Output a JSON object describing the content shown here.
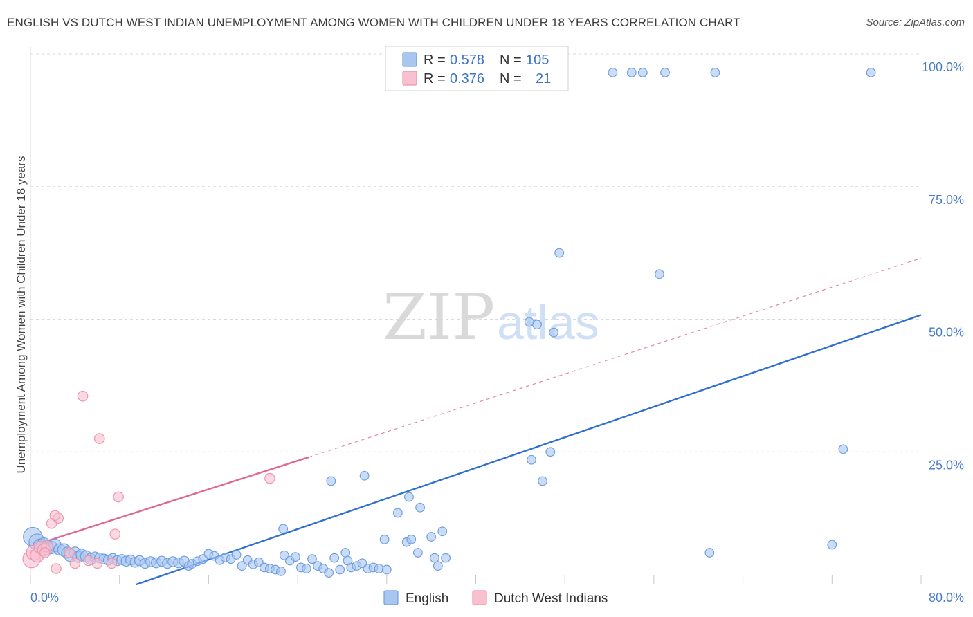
{
  "header": {
    "title": "ENGLISH VS DUTCH WEST INDIAN UNEMPLOYMENT AMONG WOMEN WITH CHILDREN UNDER 18 YEARS CORRELATION CHART",
    "source": "Source: ZipAtlas.com"
  },
  "watermark": {
    "zip": "ZIP",
    "atlas": "atlas"
  },
  "colors": {
    "english_fill": "#a9c6f0",
    "english_stroke": "#6f9fe0",
    "english_line": "#2f6fd0",
    "dutch_fill": "#f8c0d0",
    "dutch_stroke": "#ee95ae",
    "dutch_line": "#e0688f",
    "grid": "#d9d9d9",
    "tick_text": "#4a7cc9"
  },
  "legend": {
    "rows": [
      {
        "r_label": "R = ",
        "r_value": "0.578",
        "n_label": "N = ",
        "n_value": "105"
      },
      {
        "r_label": "R = ",
        "r_value": "0.376",
        "n_label": "N = ",
        "n_value": "21"
      }
    ]
  },
  "chart_data": {
    "type": "scatter",
    "title": "ENGLISH VS DUTCH WEST INDIAN UNEMPLOYMENT AMONG WOMEN WITH CHILDREN UNDER 18 YEARS CORRELATION CHART",
    "xlabel": "",
    "ylabel": "Unemployment Among Women with Children Under 18 years",
    "xlim": [
      0,
      80
    ],
    "ylim": [
      0,
      100
    ],
    "x_tick_labels": [
      "0.0%",
      "80.0%"
    ],
    "y_ticks": [
      25,
      50,
      75,
      100
    ],
    "y_tick_labels": [
      "25.0%",
      "50.0%",
      "75.0%",
      "100.0%"
    ],
    "series": [
      {
        "name": "English",
        "r": 0.578,
        "n": 105,
        "trend": {
          "x": [
            9.5,
            80
          ],
          "y": [
            0,
            50.8
          ],
          "dashed_extension": false
        },
        "points": [
          [
            0.2,
            9.0,
            1.5
          ],
          [
            0.6,
            8.0,
            1.3
          ],
          [
            0.9,
            7.2,
            1.2
          ],
          [
            1.2,
            7.5,
            1.1
          ],
          [
            1.5,
            6.8,
            1.0
          ],
          [
            1.9,
            7.0,
            1.0
          ],
          [
            2.2,
            7.4,
            1.0
          ],
          [
            2.6,
            6.6,
            0.9
          ],
          [
            3.0,
            6.5,
            1.0
          ],
          [
            3.3,
            6.0,
            0.9
          ],
          [
            3.6,
            5.5,
            1.0
          ],
          [
            4.0,
            6.0,
            0.9
          ],
          [
            4.3,
            5.2,
            0.9
          ],
          [
            4.6,
            5.6,
            0.9
          ],
          [
            5.0,
            5.3,
            0.9
          ],
          [
            5.4,
            4.8,
            0.9
          ],
          [
            5.8,
            5.2,
            0.8
          ],
          [
            6.2,
            5.0,
            0.8
          ],
          [
            6.6,
            4.8,
            0.8
          ],
          [
            7.0,
            4.6,
            0.8
          ],
          [
            7.4,
            4.9,
            0.8
          ],
          [
            7.8,
            4.5,
            0.8
          ],
          [
            8.2,
            4.7,
            0.8
          ],
          [
            8.6,
            4.4,
            0.8
          ],
          [
            9.0,
            4.6,
            0.8
          ],
          [
            9.4,
            4.2,
            0.8
          ],
          [
            9.8,
            4.5,
            0.8
          ],
          [
            10.3,
            4.0,
            0.8
          ],
          [
            10.8,
            4.3,
            0.8
          ],
          [
            11.3,
            4.1,
            0.8
          ],
          [
            11.8,
            4.4,
            0.8
          ],
          [
            12.3,
            4.0,
            0.8
          ],
          [
            12.8,
            4.3,
            0.8
          ],
          [
            13.3,
            4.1,
            0.8
          ],
          [
            13.8,
            4.4,
            0.8
          ],
          [
            14.2,
            3.5,
            0.7
          ],
          [
            14.5,
            3.9,
            0.7
          ],
          [
            15.0,
            4.4,
            0.7
          ],
          [
            15.5,
            4.8,
            0.7
          ],
          [
            16.0,
            5.8,
            0.7
          ],
          [
            16.5,
            5.4,
            0.7
          ],
          [
            17.0,
            4.6,
            0.7
          ],
          [
            17.5,
            5.1,
            0.7
          ],
          [
            18.0,
            4.8,
            0.7
          ],
          [
            18.5,
            5.6,
            0.7
          ],
          [
            19.0,
            3.5,
            0.7
          ],
          [
            19.5,
            4.6,
            0.7
          ],
          [
            20.0,
            3.8,
            0.7
          ],
          [
            20.5,
            4.2,
            0.7
          ],
          [
            21.0,
            3.2,
            0.7
          ],
          [
            21.5,
            3.0,
            0.7
          ],
          [
            22.0,
            2.8,
            0.7
          ],
          [
            22.5,
            2.5,
            0.7
          ],
          [
            22.8,
            5.5,
            0.7
          ],
          [
            23.3,
            4.5,
            0.7
          ],
          [
            23.8,
            5.2,
            0.7
          ],
          [
            24.3,
            3.2,
            0.7
          ],
          [
            24.8,
            3.0,
            0.7
          ],
          [
            25.3,
            4.8,
            0.7
          ],
          [
            25.8,
            3.5,
            0.7
          ],
          [
            26.3,
            3.0,
            0.7
          ],
          [
            26.8,
            2.2,
            0.7
          ],
          [
            27.3,
            5.0,
            0.7
          ],
          [
            27.8,
            2.8,
            0.7
          ],
          [
            28.3,
            6.0,
            0.7
          ],
          [
            28.8,
            3.2,
            0.7
          ],
          [
            29.3,
            3.5,
            0.7
          ],
          [
            29.8,
            4.0,
            0.7
          ],
          [
            30.3,
            3.0,
            0.7
          ],
          [
            30.8,
            3.2,
            0.7
          ],
          [
            31.3,
            3.0,
            0.7
          ],
          [
            32.0,
            2.8,
            0.7
          ],
          [
            28.5,
            4.5,
            0.7
          ],
          [
            22.7,
            10.5,
            0.7
          ],
          [
            27.0,
            19.5,
            0.7
          ],
          [
            30.0,
            20.5,
            0.7
          ],
          [
            33.0,
            13.5,
            0.7
          ],
          [
            34.0,
            16.5,
            0.7
          ],
          [
            35.0,
            14.5,
            0.7
          ],
          [
            33.8,
            8.0,
            0.7
          ],
          [
            34.2,
            8.5,
            0.7
          ],
          [
            34.8,
            6.0,
            0.7
          ],
          [
            31.8,
            8.5,
            0.7
          ],
          [
            36.0,
            9.0,
            0.7
          ],
          [
            37.0,
            10.0,
            0.7
          ],
          [
            36.6,
            3.5,
            0.7
          ],
          [
            37.3,
            5.0,
            0.7
          ],
          [
            36.3,
            5.0,
            0.7
          ],
          [
            46.7,
            25.0,
            0.7
          ],
          [
            45.0,
            23.5,
            0.7
          ],
          [
            46.0,
            19.5,
            0.7
          ],
          [
            47.5,
            62.5,
            0.7
          ],
          [
            56.5,
            58.5,
            0.7
          ],
          [
            47.0,
            47.5,
            0.7
          ],
          [
            45.5,
            49.0,
            0.7
          ],
          [
            44.8,
            49.5,
            0.7
          ],
          [
            55.0,
            96.5,
            0.7
          ],
          [
            54.0,
            96.5,
            0.7
          ],
          [
            52.3,
            96.5,
            0.7
          ],
          [
            57.0,
            96.5,
            0.7
          ],
          [
            61.5,
            96.5,
            0.7
          ],
          [
            75.5,
            96.5,
            0.7
          ],
          [
            61.0,
            6.0,
            0.7
          ],
          [
            72.0,
            7.5,
            0.7
          ],
          [
            73.0,
            25.5,
            0.7
          ]
        ]
      },
      {
        "name": "Dutch West Indians",
        "r": 0.376,
        "n": 21,
        "trend": {
          "x": [
            0,
            25
          ],
          "y": [
            7.2,
            24.0
          ],
          "dashed_extension": true,
          "dashed_to": [
            80,
            61.5
          ]
        },
        "points": [
          [
            0.1,
            4.8,
            1.4
          ],
          [
            0.3,
            6.0,
            1.2
          ],
          [
            0.6,
            5.5,
            1.1
          ],
          [
            0.9,
            7.0,
            1.0
          ],
          [
            1.2,
            6.5,
            1.0
          ],
          [
            1.5,
            7.2,
            0.9
          ],
          [
            1.9,
            11.5,
            0.8
          ],
          [
            2.5,
            12.5,
            0.8
          ],
          [
            2.2,
            13.0,
            0.8
          ],
          [
            3.5,
            6.0,
            0.8
          ],
          [
            4.0,
            4.0,
            0.8
          ],
          [
            4.7,
            35.5,
            0.8
          ],
          [
            6.2,
            27.5,
            0.8
          ],
          [
            7.6,
            9.5,
            0.8
          ],
          [
            7.9,
            16.5,
            0.8
          ],
          [
            6.0,
            4.0,
            0.8
          ],
          [
            7.3,
            4.0,
            0.8
          ],
          [
            2.3,
            3.0,
            0.8
          ],
          [
            5.2,
            4.5,
            0.8
          ],
          [
            21.5,
            20.0,
            0.8
          ],
          [
            1.3,
            6.0,
            0.8
          ]
        ]
      }
    ],
    "legend": {
      "position": "top-center",
      "entries": [
        "English",
        "Dutch West Indians"
      ]
    },
    "grid": true
  }
}
